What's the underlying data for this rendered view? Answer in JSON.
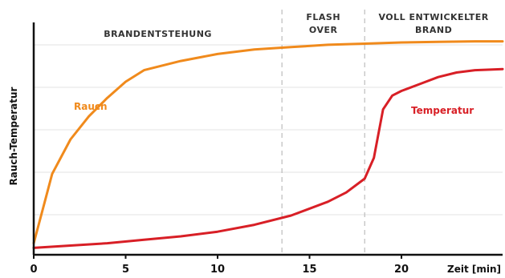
{
  "chart_data": {
    "type": "line",
    "title": "",
    "xlabel": "Zeit [min]",
    "ylabel": "Rauch-Temperatur",
    "xlim": [
      0,
      25.5
    ],
    "ylim": [
      0,
      100
    ],
    "x_ticks": [
      0,
      5,
      10,
      15,
      20
    ],
    "grid": true,
    "phases": [
      {
        "lines": [
          "BRANDENTSTEHUNG"
        ],
        "start": 0,
        "end": 13.5
      },
      {
        "lines": [
          "FLASH",
          "OVER"
        ],
        "start": 13.5,
        "end": 18
      },
      {
        "lines": [
          "VOLL ENTWICKELTER",
          "BRAND"
        ],
        "start": 18,
        "end": 25.5
      }
    ],
    "series": [
      {
        "name": "Rauch",
        "color": "#f08a1c",
        "x": [
          0,
          0.5,
          1,
          2,
          3,
          4,
          5,
          6,
          7,
          8,
          10,
          12,
          14,
          16,
          18,
          20,
          22,
          24,
          25.5
        ],
        "y": [
          5,
          20,
          35,
          50,
          60,
          68,
          75,
          80,
          82,
          84,
          87,
          89,
          90,
          91,
          91.5,
          92,
          92.3,
          92.5,
          92.5
        ]
      },
      {
        "name": "Temperatur",
        "color": "#d81f26",
        "x": [
          0,
          2,
          4,
          6,
          8,
          10,
          12,
          14,
          16,
          17,
          18,
          18.5,
          19,
          19.5,
          20,
          21,
          22,
          23,
          24,
          25.5
        ],
        "y": [
          3,
          4,
          5,
          6.5,
          8,
          10,
          13,
          17,
          23,
          27,
          33,
          42,
          63,
          69,
          71,
          74,
          77,
          79,
          80,
          80.5
        ]
      }
    ]
  }
}
